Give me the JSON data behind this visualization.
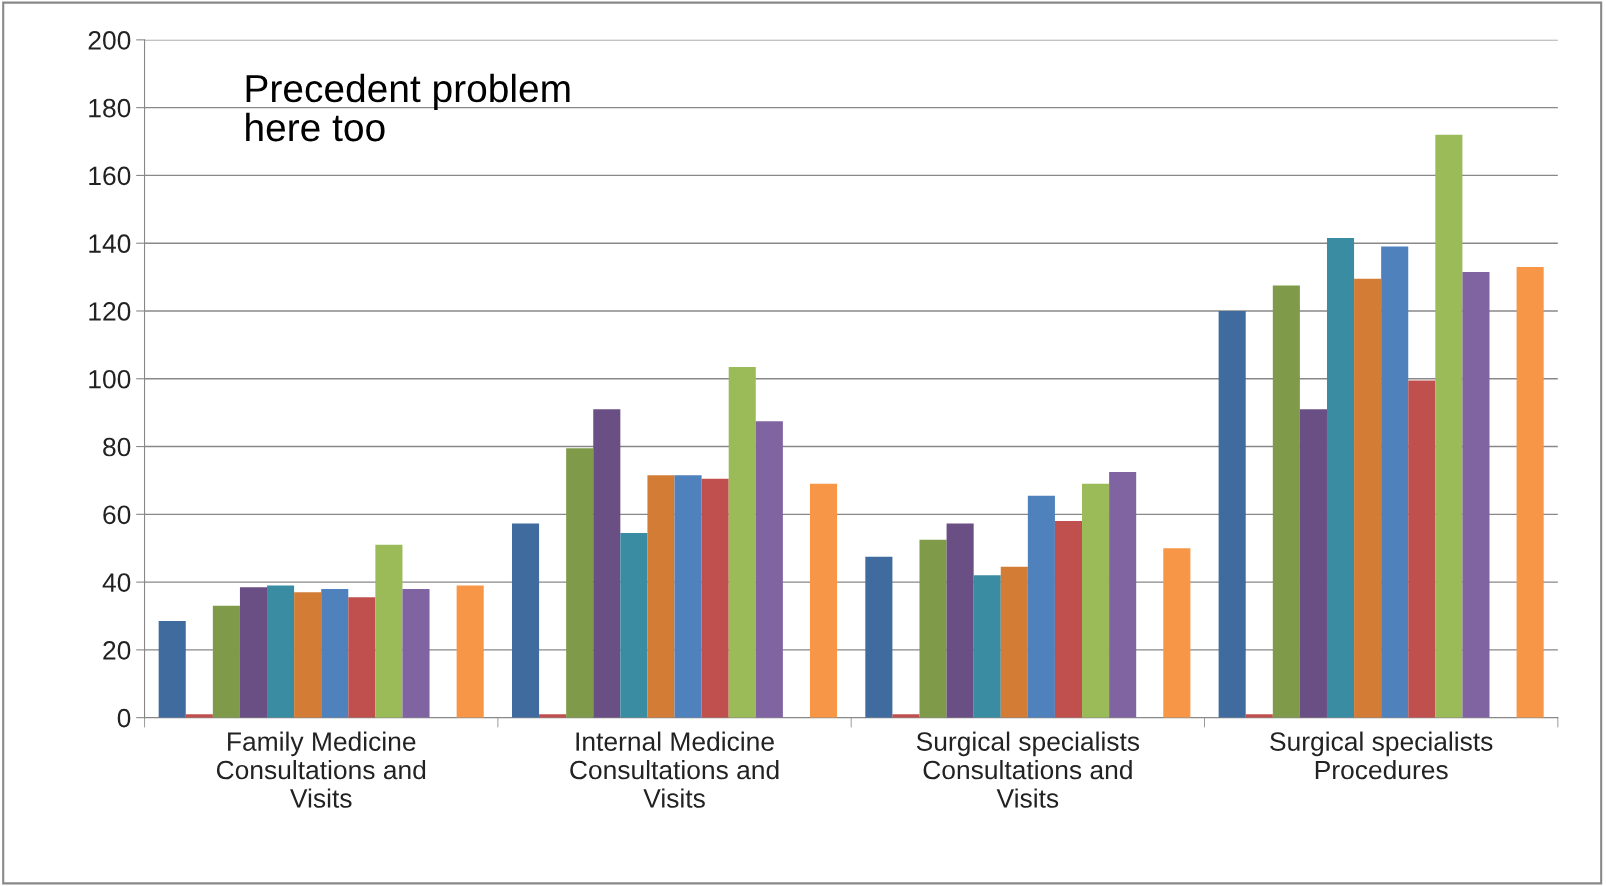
{
  "chart_data": {
    "type": "bar",
    "categories": [
      "Family Medicine\nConsultations and\nVisits",
      "Internal Medicine\nConsultations and\nVisits",
      "Surgical specialists\nConsultations and\nVisits",
      "Surgical specialists\nProcedures"
    ],
    "series": [
      {
        "color": "#3f6b9e",
        "values": [
          28.5,
          57.3,
          47.5,
          120
        ]
      },
      {
        "color": "#c0504d",
        "values": [
          1,
          1,
          1,
          1
        ]
      },
      {
        "color": "#7f9a48",
        "values": [
          33,
          79.5,
          52.5,
          127.5
        ]
      },
      {
        "color": "#6a4f85",
        "values": [
          38.5,
          91,
          57.3,
          91
        ]
      },
      {
        "color": "#3a8ca3",
        "values": [
          39,
          54.5,
          42,
          141.5
        ]
      },
      {
        "color": "#d27c36",
        "values": [
          37,
          71.5,
          44.5,
          129.5
        ]
      },
      {
        "color": "#4f81bd",
        "values": [
          38,
          71.5,
          65.5,
          139
        ]
      },
      {
        "color": "#c0504d",
        "values": [
          35.5,
          70.5,
          58,
          99.5
        ]
      },
      {
        "color": "#9bbb59",
        "values": [
          51,
          103.5,
          69,
          172
        ]
      },
      {
        "color": "#8064a2",
        "values": [
          38,
          87.5,
          72.5,
          131.5
        ]
      },
      {
        "values": [
          null,
          null,
          null,
          null
        ]
      },
      {
        "color": "#f79646",
        "values": [
          39,
          69,
          50,
          133
        ]
      }
    ],
    "ylim": [
      0,
      200
    ],
    "yticks": [
      0,
      20,
      40,
      60,
      80,
      100,
      120,
      140,
      160,
      180,
      200
    ],
    "grid": "y",
    "legend": false,
    "annotations": [
      "Precedent problem\nhere too"
    ]
  }
}
